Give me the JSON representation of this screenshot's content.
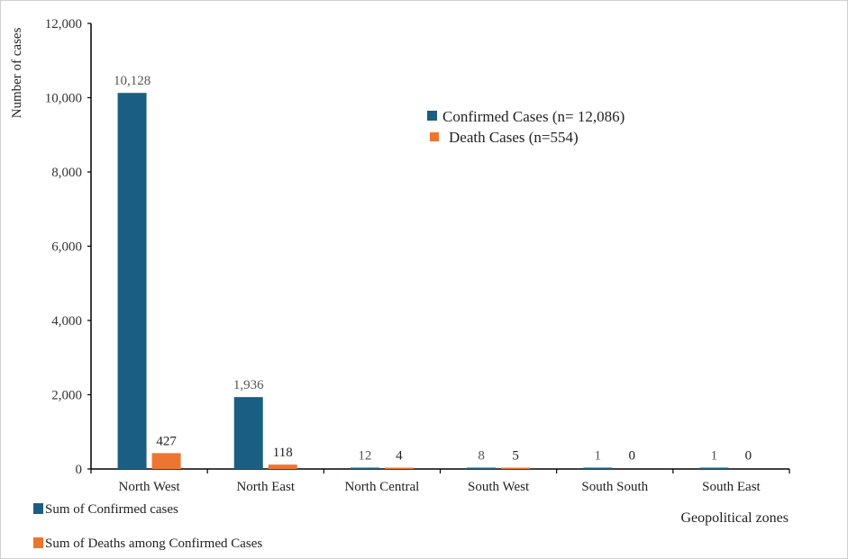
{
  "chart_data": {
    "type": "bar",
    "title": "",
    "xlabel": "Geopolitical zones",
    "ylabel": "Number of cases",
    "ylim": [
      0,
      12000
    ],
    "yticks": [
      0,
      2000,
      4000,
      6000,
      8000,
      10000,
      12000
    ],
    "ytick_labels": [
      "0",
      "2,000",
      "4,000",
      "6,000",
      "8,000",
      "10,000",
      "12,000"
    ],
    "categories": [
      "North West",
      "North East",
      "North Central",
      "South West",
      "South South",
      "South East"
    ],
    "series": [
      {
        "name": "Sum of Confirmed cases",
        "color": "#1a5e83",
        "values": [
          10128,
          1936,
          12,
          8,
          1,
          1
        ],
        "labels": [
          "10,128",
          "1,936",
          "12",
          "8",
          "1",
          "1"
        ],
        "label_color": "#555555"
      },
      {
        "name": "Sum of Deaths among Confirmed Cases",
        "color": "#ed7532",
        "values": [
          427,
          118,
          4,
          5,
          0,
          0
        ],
        "labels": [
          "427",
          "118",
          "4",
          "5",
          "0",
          "0"
        ],
        "label_color": "#222222"
      }
    ],
    "annotation_legend": [
      {
        "label": "Confirmed Cases (n= 12,086)",
        "color": "#1a5e83"
      },
      {
        "label": "Death Cases (n=554)",
        "color": "#ed7532"
      }
    ],
    "grid": false,
    "legend_position": "bottom-left"
  }
}
